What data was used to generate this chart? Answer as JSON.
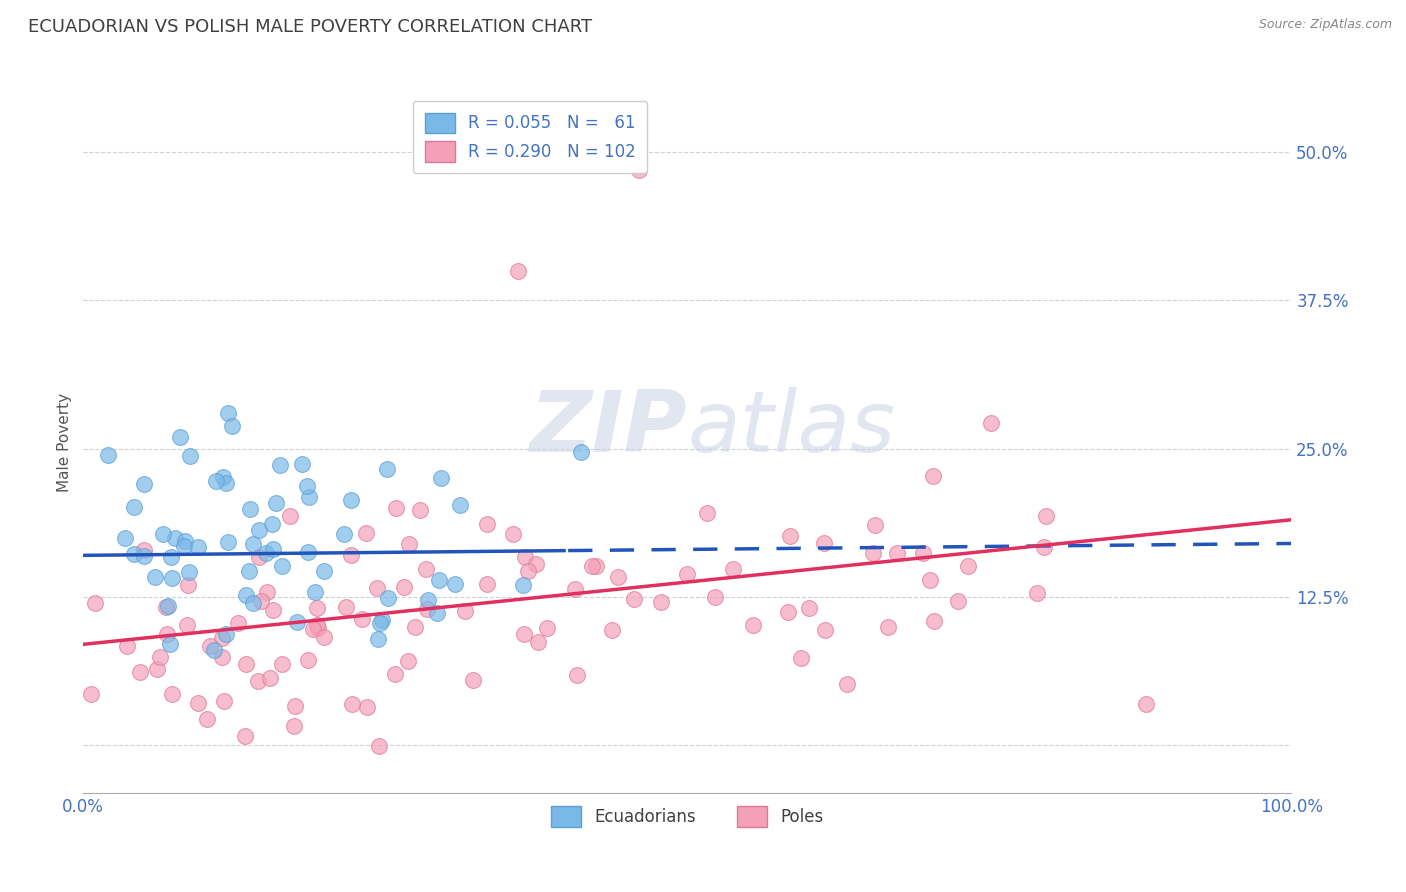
{
  "title": "ECUADORIAN VS POLISH MALE POVERTY CORRELATION CHART",
  "source_text": "Source: ZipAtlas.com",
  "ylabel": "Male Poverty",
  "xlim": [
    0,
    100
  ],
  "ylim": [
    -4,
    55
  ],
  "yticks": [
    0,
    12.5,
    25.0,
    37.5,
    50.0
  ],
  "xticks": [
    0,
    100
  ],
  "xtick_labels": [
    "0.0%",
    "100.0%"
  ],
  "ytick_labels": [
    "",
    "12.5%",
    "25.0%",
    "37.5%",
    "50.0%"
  ],
  "ecuadorians_color": "#7ab8e8",
  "ecuadorians_edge": "#5b9fd4",
  "poles_color": "#f4a0b8",
  "poles_edge": "#e07898",
  "trend_ecuadorians_color": "#2255bb",
  "trend_poles_color": "#e03060",
  "background_color": "#ffffff",
  "grid_color": "#cccccc",
  "title_color": "#404040",
  "axis_label_color": "#555555",
  "tick_color": "#4472c4",
  "watermark_color": "#cdd6e8",
  "title_fontsize": 13,
  "axis_label_fontsize": 11,
  "tick_fontsize": 12,
  "legend_fontsize": 12,
  "R_ecu": 0.055,
  "N_ecu": 61,
  "R_pol": 0.29,
  "N_pol": 102,
  "ecu_intercept": 16.0,
  "ecu_slope": 0.01,
  "pol_intercept": 8.5,
  "pol_slope": 0.105,
  "seed": 42
}
